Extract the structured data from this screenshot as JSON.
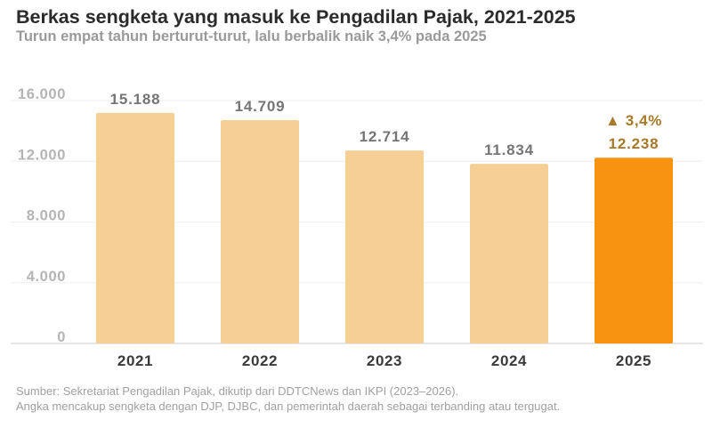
{
  "header": {
    "title": "Berkas sengketa yang masuk ke Pengadilan Pajak, 2021-2025",
    "subtitle": "Turun empat tahun berturut-turut, lalu berbalik naik 3,4% pada 2025"
  },
  "footer": {
    "source": "Sumber: Sekretariat Pengadilan Pajak, dikutip dari DDTCNews dan IKPI (2023–2026).",
    "note": "Angka mencakup sengketa dengan DJP, DJBC, dan pemerintah daerah sebagai terbanding atau tergugat."
  },
  "chart_data": {
    "type": "bar",
    "title": "Berkas sengketa yang masuk ke Pengadilan Pajak, 2021-2025",
    "subtitle": "Turun empat tahun berturut-turut, lalu berbalik naik 3,4% pada 2025",
    "categories": [
      "2021",
      "2022",
      "2023",
      "2024",
      "2025"
    ],
    "values": [
      15188,
      14709,
      12714,
      11834,
      12238
    ],
    "value_labels": [
      "15.188",
      "14.709",
      "12.714",
      "11.834",
      "12.238"
    ],
    "ylim": [
      0,
      16000
    ],
    "yticks": [
      0,
      4000,
      8000,
      12000,
      16000
    ],
    "ytick_labels": [
      "0",
      "4.000",
      "8.000",
      "12.000",
      "16.000"
    ],
    "grid": true,
    "highlight_index": 4,
    "annotation": {
      "index": 4,
      "text": "▲ 3,4%"
    },
    "colors": {
      "bar": "#f6cf96",
      "highlight": "#f7930f",
      "value_label": "#757575",
      "highlight_label": "#a7782a",
      "grid": "#eeeeee",
      "axis_text": "#b4b4b4",
      "category_text": "#3a3a3a"
    }
  }
}
